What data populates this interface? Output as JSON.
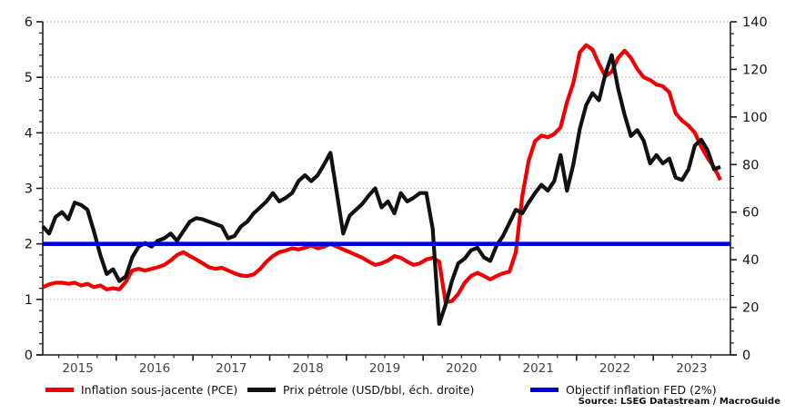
{
  "figure": {
    "source_note": "Source: LSEG Datastream / MacroGuide"
  },
  "legend": [
    {
      "label": "Inflation sous-jacente (PCE)",
      "color": "#f00000"
    },
    {
      "label": "Prix pétrole (USD/bbl, éch. droite)",
      "color": "#111111"
    },
    {
      "label": "Objectif inflation FED (2%)",
      "color": "#0000dd"
    }
  ],
  "chart_data": {
    "type": "line",
    "title": "",
    "x_unit": "month",
    "x_start": "2015-01",
    "x_end": "2023-11",
    "x_tick_labels": [
      "2015",
      "2016",
      "2017",
      "2018",
      "2019",
      "2020",
      "2021",
      "2022",
      "2023"
    ],
    "grid": "horizontal-dotted",
    "legend_position": "bottom",
    "axes": {
      "left": {
        "min": 0,
        "max": 6,
        "major_step": 1,
        "minor_step": 0.2,
        "ticks": [
          0,
          1,
          2,
          3,
          4,
          5,
          6
        ]
      },
      "right": {
        "min": 0,
        "max": 140,
        "major_step": 20,
        "minor_step": 5,
        "ticks": [
          0,
          20,
          40,
          60,
          80,
          100,
          120,
          140
        ]
      }
    },
    "series": [
      {
        "name": "Inflation sous-jacente (PCE)",
        "axis": "left",
        "color": "#f00000",
        "values": [
          1.22,
          1.27,
          1.3,
          1.3,
          1.28,
          1.3,
          1.25,
          1.28,
          1.22,
          1.25,
          1.18,
          1.2,
          1.18,
          1.32,
          1.52,
          1.55,
          1.52,
          1.55,
          1.58,
          1.62,
          1.7,
          1.8,
          1.85,
          1.78,
          1.72,
          1.65,
          1.58,
          1.55,
          1.57,
          1.52,
          1.47,
          1.43,
          1.42,
          1.45,
          1.55,
          1.68,
          1.78,
          1.85,
          1.88,
          1.92,
          1.9,
          1.93,
          1.97,
          1.92,
          1.95,
          2.0,
          1.95,
          1.9,
          1.85,
          1.8,
          1.75,
          1.68,
          1.62,
          1.65,
          1.7,
          1.78,
          1.75,
          1.68,
          1.62,
          1.65,
          1.72,
          1.75,
          1.68,
          0.95,
          0.97,
          1.1,
          1.3,
          1.42,
          1.48,
          1.42,
          1.36,
          1.42,
          1.47,
          1.5,
          1.85,
          2.85,
          3.5,
          3.85,
          3.95,
          3.92,
          3.98,
          4.1,
          4.55,
          4.9,
          5.45,
          5.58,
          5.5,
          5.24,
          5.02,
          5.1,
          5.35,
          5.48,
          5.35,
          5.15,
          5.0,
          4.95,
          4.87,
          4.84,
          4.73,
          4.35,
          4.22,
          4.13,
          4.0,
          3.75,
          3.55,
          3.38,
          3.15
        ]
      },
      {
        "name": "Prix pétrole (USD/bbl, éch. droite)",
        "axis": "right",
        "color": "#111111",
        "values": [
          54,
          51,
          58,
          60,
          57,
          64,
          63,
          61,
          52,
          42,
          34,
          36,
          31,
          33,
          41,
          45.5,
          47,
          45.5,
          48,
          49,
          51,
          48,
          52,
          56,
          57.5,
          57,
          56,
          55,
          54,
          49,
          50,
          54,
          56,
          59.5,
          62,
          64.5,
          68,
          64.5,
          66,
          68,
          73,
          75.5,
          73,
          75.5,
          80,
          85,
          68,
          51,
          58.5,
          61,
          63.5,
          67,
          70,
          62,
          64.5,
          59.5,
          68,
          64.5,
          66,
          68,
          68,
          53,
          13,
          21,
          31,
          38.5,
          40.5,
          44,
          45,
          41,
          39.5,
          46,
          50,
          55.5,
          61,
          59.5,
          64,
          68,
          71.5,
          69,
          73,
          84,
          69,
          80,
          95,
          105,
          110,
          107,
          118,
          126,
          112,
          101,
          92,
          94.5,
          90,
          80.5,
          84,
          80.5,
          82.5,
          74.5,
          73.5,
          78,
          88,
          90.5,
          86,
          78,
          79
        ]
      },
      {
        "name": "Objectif inflation FED (2%)",
        "axis": "left",
        "color": "#0000dd",
        "constant": 2
      }
    ]
  }
}
